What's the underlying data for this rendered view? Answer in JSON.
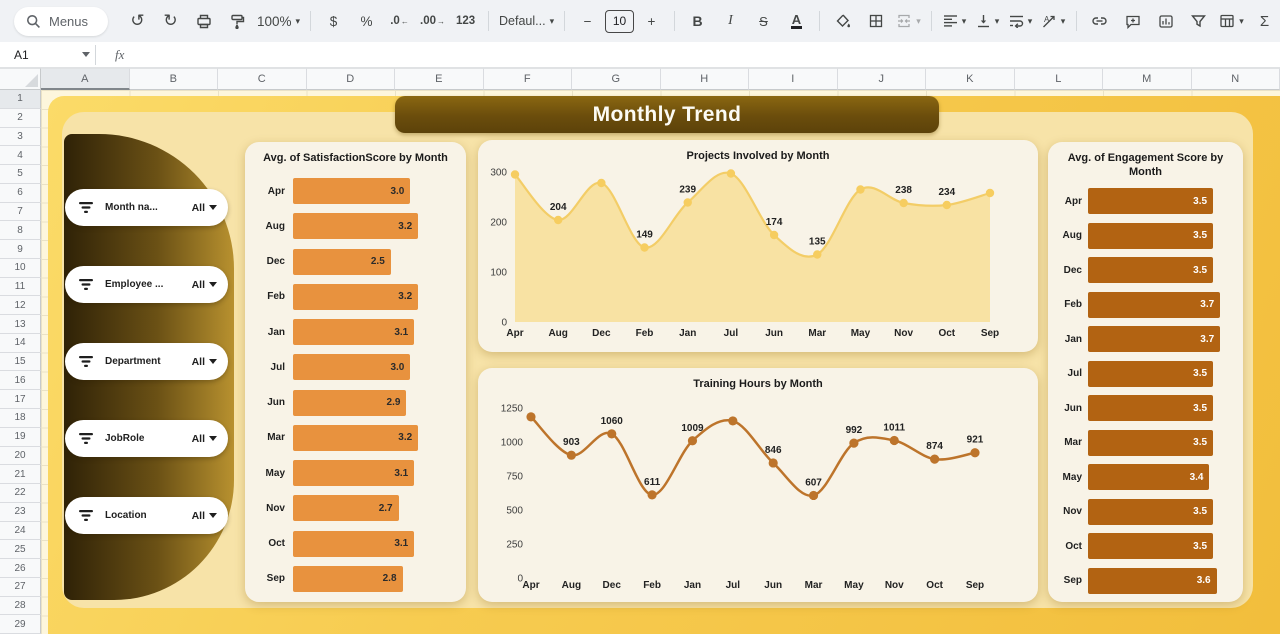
{
  "toolbar": {
    "menus": "Menus",
    "zoom": "100%",
    "currency": "$",
    "percent": "%",
    "dec_decrease": ".0",
    "dec_increase": ".00",
    "format_123": "123",
    "font_name": "Defaul...",
    "font_size": "10",
    "minus": "−",
    "plus": "+",
    "bold": "B",
    "italic": "I",
    "strikethrough": "S",
    "text_color": "A"
  },
  "icons": {
    "undo": "↺",
    "redo": "↻",
    "caret": "▾",
    "sum": "Σ",
    "dec_left_arrow": "←",
    "dec_right_arrow": "→"
  },
  "formula_bar": {
    "cell_ref": "A1",
    "fx": "fx"
  },
  "sheet": {
    "columns": [
      "A",
      "B",
      "C",
      "D",
      "E",
      "F",
      "G",
      "H",
      "I",
      "J",
      "K",
      "L",
      "M",
      "N"
    ],
    "selected_column": "A",
    "row_start": 1,
    "row_end": 29,
    "selected_row": 1
  },
  "dashboard": {
    "title": "Monthly Trend",
    "filters": [
      {
        "label": "Month na...",
        "value": "All"
      },
      {
        "label": "Employee ...",
        "value": "All"
      },
      {
        "label": "Department",
        "value": "All"
      },
      {
        "label": "JobRole",
        "value": "All"
      },
      {
        "label": "Location",
        "value": "All"
      }
    ]
  },
  "chart_data": [
    {
      "type": "bar",
      "orientation": "horizontal",
      "title": "Avg. of SatisfactionScore by Month",
      "categories": [
        "Apr",
        "Aug",
        "Dec",
        "Feb",
        "Jan",
        "Jul",
        "Jun",
        "Mar",
        "May",
        "Nov",
        "Oct",
        "Sep"
      ],
      "values": [
        3.0,
        3.2,
        2.5,
        3.2,
        3.1,
        3.0,
        2.9,
        3.2,
        3.1,
        2.7,
        3.1,
        2.8
      ],
      "xlim": [
        0,
        3.4
      ],
      "bar_color": "#E8923E",
      "value_color": "#2b2b2b",
      "value_decimals": 1
    },
    {
      "type": "area",
      "title": "Projects Involved by Month",
      "categories": [
        "Apr",
        "Aug",
        "Dec",
        "Feb",
        "Jan",
        "Jul",
        "Jun",
        "Mar",
        "May",
        "Nov",
        "Oct",
        "Sep"
      ],
      "values": [
        295,
        204,
        278,
        149,
        239,
        297,
        174,
        135,
        265,
        238,
        234,
        258
      ],
      "labels_shown": [
        false,
        true,
        false,
        true,
        true,
        false,
        true,
        true,
        false,
        true,
        true,
        false
      ],
      "ylim": [
        0,
        300
      ],
      "yticks": [
        0,
        100,
        200,
        300
      ],
      "line_color": "#F3CD67",
      "fill_color": "#F8E2A3",
      "dot_color": "#F6CD60",
      "grid": false,
      "legend": false
    },
    {
      "type": "line",
      "title": "Training Hours by Month",
      "categories": [
        "Apr",
        "Aug",
        "Dec",
        "Feb",
        "Jan",
        "Jul",
        "Jun",
        "Mar",
        "May",
        "Nov",
        "Oct",
        "Sep"
      ],
      "values": [
        1185,
        903,
        1060,
        611,
        1009,
        1155,
        846,
        607,
        992,
        1011,
        874,
        921
      ],
      "labels_shown": [
        false,
        true,
        true,
        true,
        true,
        false,
        true,
        true,
        true,
        true,
        true,
        true
      ],
      "ylim": [
        0,
        1250
      ],
      "yticks": [
        0,
        250,
        500,
        750,
        1000,
        1250
      ],
      "line_color": "#BD742B",
      "dot_color": "#BD742B",
      "grid": false,
      "legend": false
    },
    {
      "type": "bar",
      "orientation": "horizontal",
      "title": "Avg. of Engagement Score by Month",
      "categories": [
        "Apr",
        "Aug",
        "Dec",
        "Feb",
        "Jan",
        "Jul",
        "Jun",
        "Mar",
        "May",
        "Nov",
        "Oct",
        "Sep"
      ],
      "values": [
        3.5,
        3.5,
        3.5,
        3.7,
        3.7,
        3.5,
        3.5,
        3.5,
        3.4,
        3.5,
        3.5,
        3.6
      ],
      "xlim": [
        0,
        3.75
      ],
      "bar_color": "#B26312",
      "value_color": "#ffffff",
      "value_decimals": 1
    }
  ]
}
